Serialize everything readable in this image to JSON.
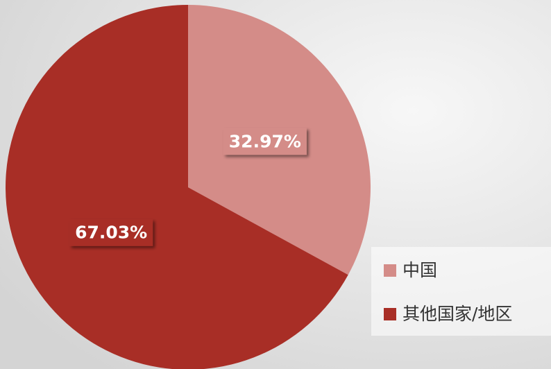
{
  "chart_data": {
    "type": "pie",
    "categories": [
      "中国",
      "其他国家/地区"
    ],
    "values": [
      32.97,
      67.03
    ],
    "value_labels": [
      "32.97%",
      "67.03%"
    ],
    "colors": [
      "#d48c88",
      "#a82e26"
    ],
    "legend": "lower right"
  }
}
